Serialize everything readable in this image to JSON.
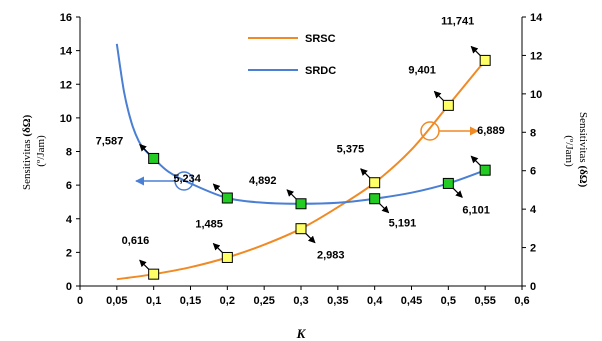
{
  "chart_data": {
    "type": "line",
    "xlabel": "K",
    "ylabel_left": "Sensitivitas (δΩ) (º/Jam)",
    "ylabel_right": "Sensitivitas (δΩ) (º/Jam)",
    "ylabel_left_parts": [
      "Sensitivitas ",
      "(δΩ)",
      "(º/Jam)"
    ],
    "ylabel_right_parts": [
      "Sensitivitas ",
      "(δΩ)",
      "(º/Jam)"
    ],
    "xlim": [
      0,
      0.6
    ],
    "ylim_left": [
      0,
      16
    ],
    "ylim_right": [
      0,
      14
    ],
    "x_ticks": [
      "0",
      "0,05",
      "0,1",
      "0,15",
      "0,2",
      "0,25",
      "0,3",
      "0,35",
      "0,4",
      "0,45",
      "0,5",
      "0,55",
      "0,6"
    ],
    "y_left_ticks": [
      "0",
      "2",
      "4",
      "6",
      "8",
      "10",
      "12",
      "14",
      "16"
    ],
    "y_right_ticks": [
      "0",
      "2",
      "4",
      "6",
      "8",
      "10",
      "12",
      "14"
    ],
    "grid": false,
    "legend_position": "top-center",
    "series": [
      {
        "name": "SRSC",
        "axis": "right",
        "color": "#f08a24",
        "marker_color": "#ffff66",
        "curve_x": [
          0.05,
          0.1,
          0.15,
          0.2,
          0.25,
          0.3,
          0.35,
          0.4,
          0.45,
          0.5,
          0.55
        ],
        "curve_y": [
          0.35,
          0.616,
          0.98,
          1.485,
          2.15,
          2.983,
          4.1,
          5.375,
          7.1,
          9.401,
          11.741
        ],
        "points": [
          {
            "x": 0.1,
            "y": 0.616,
            "label": "0,616"
          },
          {
            "x": 0.2,
            "y": 1.485,
            "label": "1,485"
          },
          {
            "x": 0.3,
            "y": 2.983,
            "label": "2,983"
          },
          {
            "x": 0.4,
            "y": 5.375,
            "label": "5,375"
          },
          {
            "x": 0.5,
            "y": 9.401,
            "label": "9,401"
          },
          {
            "x": 0.55,
            "y": 11.741,
            "label": "11,741"
          }
        ]
      },
      {
        "name": "SRDC",
        "axis": "left",
        "color": "#4a7fd4",
        "marker_color": "#22cc22",
        "curve_x": [
          0.05,
          0.06,
          0.07,
          0.08,
          0.09,
          0.1,
          0.12,
          0.15,
          0.2,
          0.25,
          0.3,
          0.35,
          0.4,
          0.45,
          0.5,
          0.55
        ],
        "curve_y": [
          14.4,
          11.5,
          9.7,
          8.6,
          8.0,
          7.587,
          6.8,
          6.1,
          5.234,
          4.95,
          4.892,
          4.95,
          5.191,
          5.55,
          6.101,
          6.889
        ],
        "points": [
          {
            "x": 0.1,
            "y": 7.587,
            "label": "7,587"
          },
          {
            "x": 0.2,
            "y": 5.234,
            "label": "5,234"
          },
          {
            "x": 0.3,
            "y": 4.892,
            "label": "4,892"
          },
          {
            "x": 0.4,
            "y": 5.191,
            "label": "5,191"
          },
          {
            "x": 0.5,
            "y": 6.101,
            "label": "6,101"
          },
          {
            "x": 0.55,
            "y": 6.889,
            "label": "6,889"
          }
        ]
      }
    ]
  }
}
